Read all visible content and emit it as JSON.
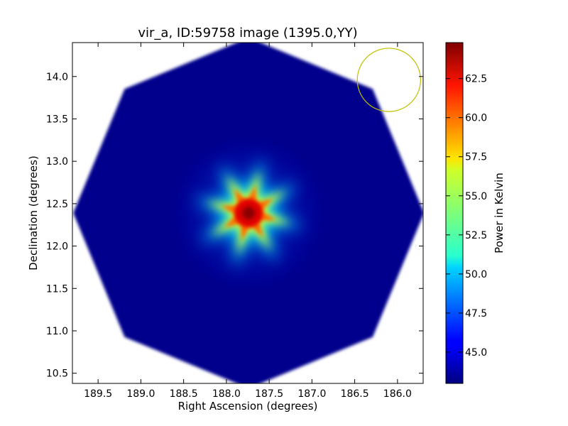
{
  "chart_data": {
    "type": "heatmap",
    "title": "vir_a, ID:59758 image (1395.0,YY)",
    "xlabel": "Right Ascension (degrees)",
    "ylabel": "Declination (degrees)",
    "xlim": [
      189.8,
      185.7
    ],
    "ylim": [
      10.38,
      14.4
    ],
    "x_ticks": [
      189.5,
      189.0,
      188.5,
      188.0,
      187.5,
      187.0,
      186.5,
      186.0
    ],
    "y_ticks": [
      10.5,
      11.0,
      11.5,
      12.0,
      12.5,
      13.0,
      13.5,
      14.0
    ],
    "x_tick_labels": [
      "189.5",
      "189.0",
      "188.5",
      "188.0",
      "187.5",
      "187.0",
      "186.5",
      "186.0"
    ],
    "y_tick_labels": [
      "10.5",
      "11.0",
      "11.5",
      "12.0",
      "12.5",
      "13.0",
      "13.5",
      "14.0"
    ],
    "colorbar": {
      "label": "Power in Kelvin",
      "range": [
        43.0,
        64.8
      ],
      "ticks": [
        45.0,
        47.5,
        50.0,
        52.5,
        55.0,
        57.5,
        60.0,
        62.5
      ],
      "tick_labels": [
        "45.0",
        "47.5",
        "50.0",
        "52.5",
        "55.0",
        "57.5",
        "60.0",
        "62.5"
      ],
      "colormap": "jet"
    },
    "field": {
      "shape": "octagon",
      "center": [
        187.74,
        12.39
      ],
      "radius_deg": 2.05,
      "background_value": 43.2
    },
    "source": {
      "center": [
        187.74,
        12.39
      ],
      "peak_value": 64.5,
      "points": 8
    },
    "beam_circle": {
      "center": [
        186.1,
        13.96
      ],
      "radius_deg": 0.37,
      "color": "#bfbf00"
    }
  },
  "colors": {
    "axes": "#000000",
    "background": "#ffffff"
  }
}
